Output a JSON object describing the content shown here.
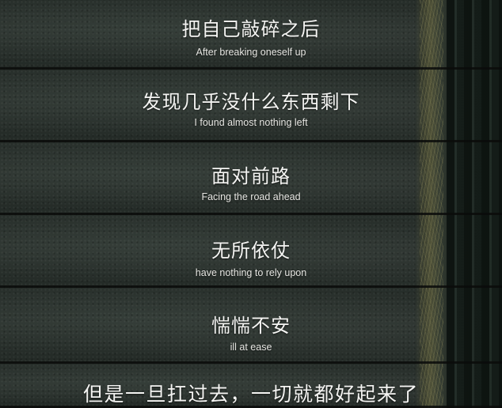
{
  "subtitles": [
    {
      "zh": "把自己敲碎之后",
      "en": "After breaking oneself up"
    },
    {
      "zh": "发现几乎没什么东西剩下",
      "en": "I found almost nothing left"
    },
    {
      "zh": "面对前路",
      "en": "Facing the road ahead"
    },
    {
      "zh": "无所依仗",
      "en": "have nothing to rely upon"
    },
    {
      "zh": "惴惴不安",
      "en": "ill at ease"
    },
    {
      "zh": "但是一旦扛过去，一切就都好起来了",
      "en": ""
    }
  ]
}
